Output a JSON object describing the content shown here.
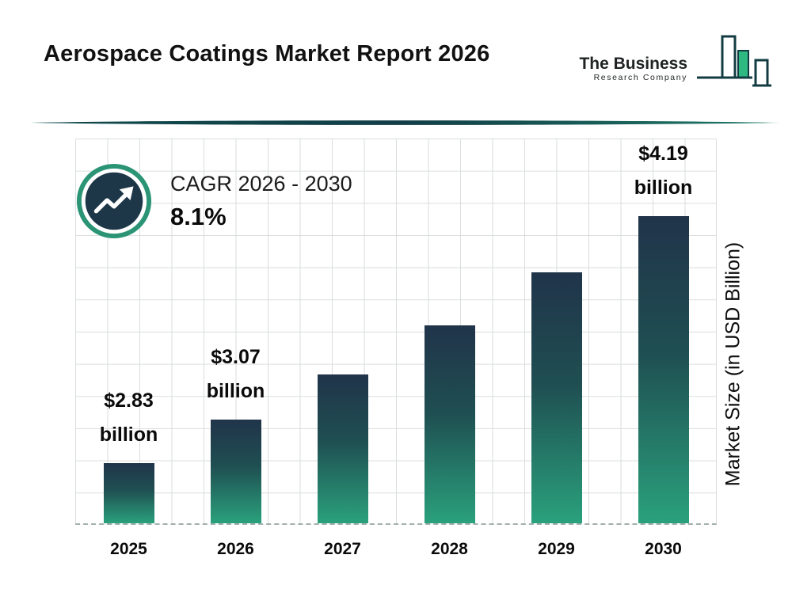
{
  "header": {
    "title": "Aerospace Coatings Market Report 2026",
    "logo": {
      "line1": "The Business",
      "line2": "Research Company"
    }
  },
  "cagr": {
    "label": "CAGR 2026 - 2030",
    "value": "8.1%"
  },
  "chart_data": {
    "type": "bar",
    "title": "Aerospace Coatings Market Report 2026",
    "categories": [
      "2025",
      "2026",
      "2027",
      "2028",
      "2029",
      "2030"
    ],
    "values": [
      2.83,
      3.07,
      3.32,
      3.59,
      3.88,
      4.19
    ],
    "bar_labels": [
      [
        "$2.83",
        "billion"
      ],
      [
        "$3.07",
        "billion"
      ],
      null,
      null,
      null,
      [
        "$4.19",
        "billion"
      ]
    ],
    "xlabel": "",
    "ylabel": "Market Size (in USD Billion)",
    "ylim": [
      2.5,
      4.19
    ],
    "grid": true,
    "legend": "none",
    "colors": {
      "bar_top": "#20344a",
      "bar_bottom": "#2aa17c",
      "accent_teal": "#2a9475",
      "dark_navy": "#1d3748",
      "logo_green": "#2eb882",
      "grid": "#dadedd"
    }
  }
}
